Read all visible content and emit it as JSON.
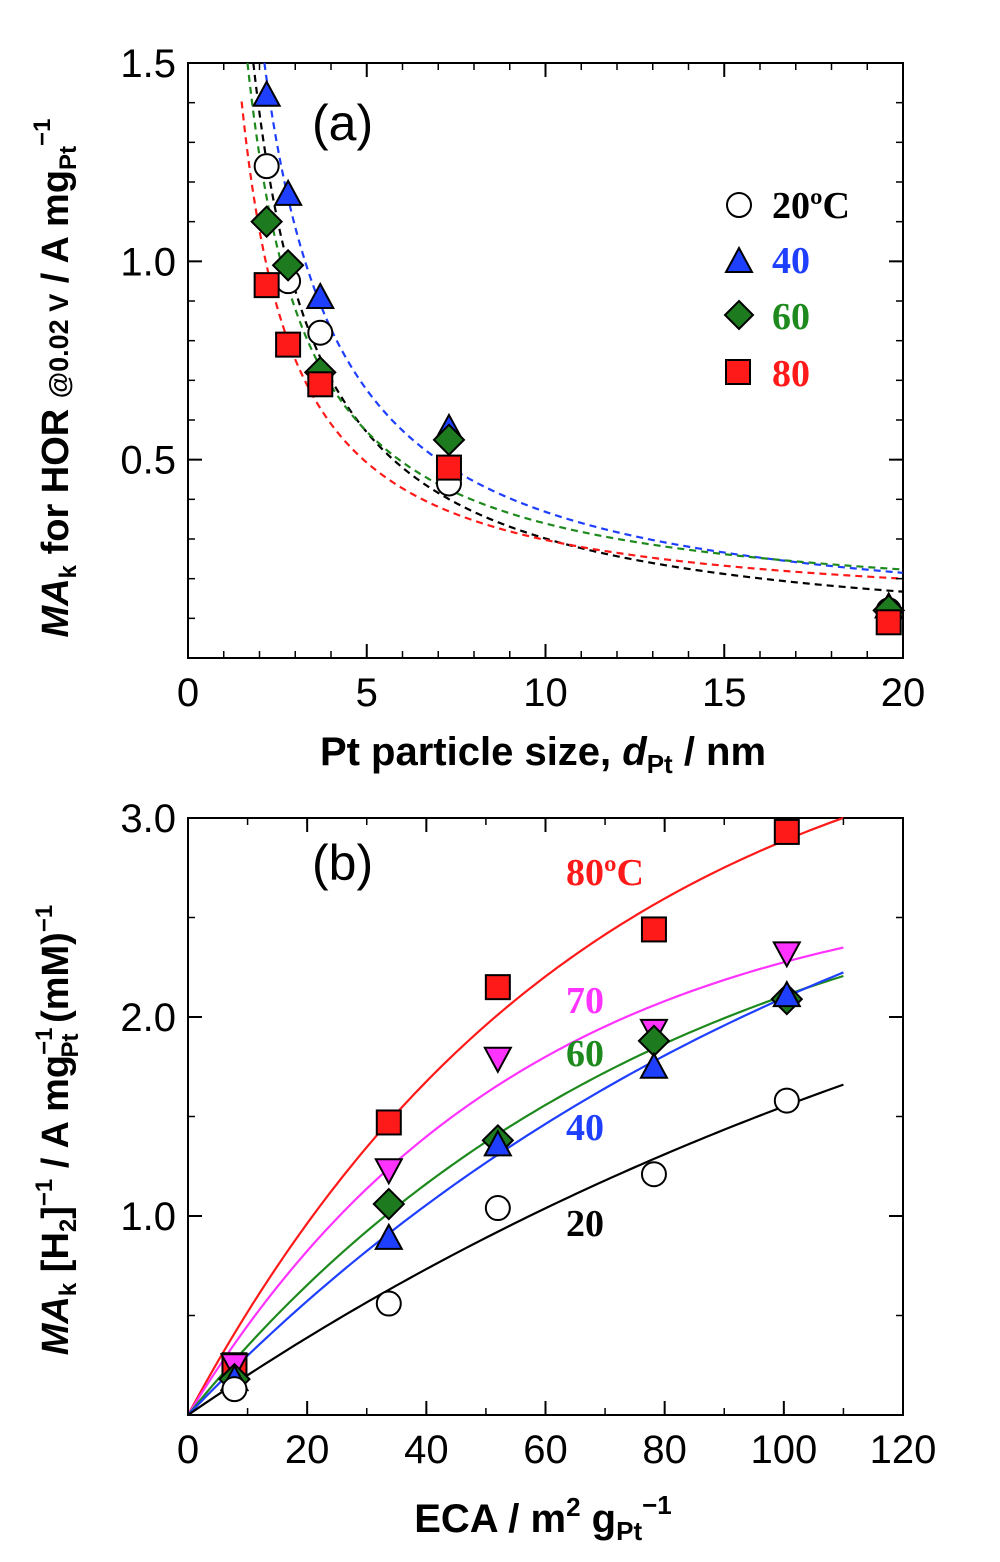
{
  "chart_data": [
    {
      "panel_label": "(a)",
      "type": "scatter",
      "xlabel": {
        "main": "Pt particle size, ",
        "var": "d",
        "sub": "Pt",
        "unit": " / nm"
      },
      "ylabel": {
        "var": "MA",
        "var_sub": "k",
        "mid": " for HOR ",
        "potential": "@0.02 V",
        "unit": " / A mg",
        "unit_sub": "Pt",
        "unit_sup": "−1"
      },
      "xlim": [
        0,
        20
      ],
      "ylim": [
        0,
        1.5
      ],
      "xticks": [
        "0",
        "5",
        "10",
        "15",
        "20"
      ],
      "yticks": [
        "0.5",
        "1.0",
        "1.5"
      ],
      "legend_position": "top-right",
      "series": [
        {
          "name": "20ºC",
          "marker": "circle",
          "color": "#ffffff",
          "text_color": "#000000",
          "curve_color": "#000000",
          "x": [
            2.2,
            2.8,
            3.7,
            7.3,
            19.6
          ],
          "y": [
            1.24,
            0.95,
            0.82,
            0.44,
            0.12
          ]
        },
        {
          "name": "40",
          "marker": "triangle-up",
          "color": "#1f3fff",
          "text_color": "#1f3fff",
          "curve_color": "#1f3fff",
          "x": [
            2.2,
            2.8,
            3.7,
            7.3,
            19.6
          ],
          "y": [
            1.42,
            1.17,
            0.91,
            0.58,
            0.13
          ]
        },
        {
          "name": "60",
          "marker": "diamond",
          "color": "#1e7a1e",
          "text_color": "#1e8a1e",
          "curve_color": "#1e8a1e",
          "x": [
            2.2,
            2.8,
            3.7,
            7.3,
            19.6
          ],
          "y": [
            1.1,
            0.99,
            0.72,
            0.55,
            0.12
          ]
        },
        {
          "name": "80",
          "marker": "square",
          "color": "#ff1a1a",
          "text_color": "#ff1a1a",
          "curve_color": "#ff1a1a",
          "x": [
            2.2,
            2.8,
            3.7,
            7.3,
            19.6
          ],
          "y": [
            0.94,
            0.79,
            0.69,
            0.48,
            0.09
          ]
        }
      ]
    },
    {
      "panel_label": "(b)",
      "type": "scatter",
      "xlabel": {
        "main": "ECA / m",
        "sup": "2",
        "unit": " g",
        "unit_sub": "Pt",
        "unit_sup": "−1"
      },
      "ylabel": {
        "var": "MA",
        "var_sub": "k",
        "h2": " [H",
        "h2_sub": "2",
        "h2_close": "]",
        "h2_sup": "−1",
        "unit": " / A mg",
        "unit_sup": "−1",
        "unit_sub": "Pt",
        "mm": " (mM)",
        "mm_sup": "−1"
      },
      "xlim": [
        0,
        120
      ],
      "ylim": [
        0,
        3.0
      ],
      "xticks": [
        "0",
        "20",
        "40",
        "60",
        "80",
        "100",
        "120"
      ],
      "yticks": [
        "1.0",
        "2.0",
        "3.0"
      ],
      "series": [
        {
          "name": "80ºC",
          "marker": "square",
          "color": "#ff1a1a",
          "text_color": "#ff1a1a",
          "curve_color": "#ff1a1a",
          "x": [
            7.8,
            33.7,
            52.0,
            78.2,
            100.5
          ],
          "y": [
            0.25,
            1.47,
            2.15,
            2.44,
            2.93
          ]
        },
        {
          "name": "70",
          "marker": "triangle-down",
          "color": "#ff33ff",
          "text_color": "#ff33ff",
          "curve_color": "#ff33ff",
          "x": [
            7.8,
            33.7,
            52.0,
            78.2,
            100.5
          ],
          "y": [
            0.25,
            1.23,
            1.79,
            1.93,
            2.32
          ]
        },
        {
          "name": "60",
          "marker": "diamond",
          "color": "#1e7a1e",
          "text_color": "#1e8a1e",
          "curve_color": "#1e8a1e",
          "x": [
            7.8,
            33.7,
            52.0,
            78.2,
            100.5
          ],
          "y": [
            0.18,
            1.06,
            1.38,
            1.88,
            2.09
          ]
        },
        {
          "name": "40",
          "marker": "triangle-up",
          "color": "#1f3fff",
          "text_color": "#1f3fff",
          "curve_color": "#1f3fff",
          "x": [
            7.8,
            33.7,
            52.0,
            78.2,
            100.5
          ],
          "y": [
            0.18,
            0.89,
            1.36,
            1.75,
            2.11
          ]
        },
        {
          "name": "20",
          "marker": "circle",
          "color": "#ffffff",
          "text_color": "#000000",
          "curve_color": "#000000",
          "x": [
            7.8,
            33.7,
            52.0,
            78.2,
            100.5
          ],
          "y": [
            0.13,
            0.56,
            1.04,
            1.21,
            1.58
          ]
        }
      ]
    }
  ]
}
